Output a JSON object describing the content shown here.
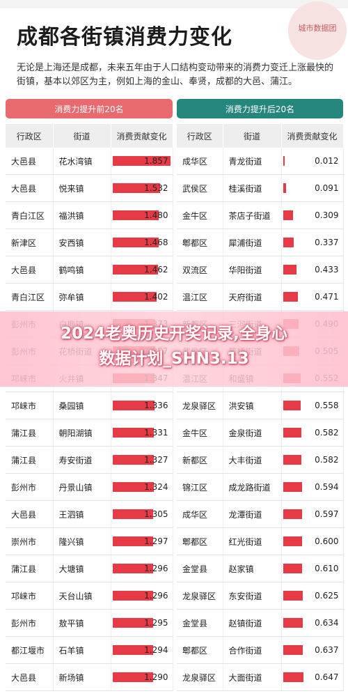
{
  "header": {
    "title": "成都各街镇消费力变化",
    "logo_text": "城市数据团",
    "intro": "无论是上海还是成都，未来五年由于人口结构变动带来的消费力变迁上涨最快的街镇，基本以郊区为主，例如上海的金山、奉贤，成都的大邑、蒲江。"
  },
  "banner": {
    "line1": "2024老奥历史开奖记录,全身心",
    "line2": "数据计划_SHN3.13"
  },
  "colors": {
    "left_header": "#e86a6f",
    "right_header": "#25867e",
    "bar": "#e63b46"
  },
  "chart_data": [
    {
      "type": "table",
      "title": "消费力提升前20名",
      "columns": [
        "行政区",
        "街道",
        "消费贡献变化"
      ],
      "rows": [
        {
          "district": "大邑县",
          "street": "花水湾镇",
          "value": 1.857
        },
        {
          "district": "大邑县",
          "street": "悦来镇",
          "value": 1.532
        },
        {
          "district": "青白江区",
          "street": "福洪镇",
          "value": 1.48
        },
        {
          "district": "新津区",
          "street": "安西镇",
          "value": 1.468
        },
        {
          "district": "大邑县",
          "street": "鹤鸣镇",
          "value": 1.462
        },
        {
          "district": "青白江区",
          "street": "弥牟镇",
          "value": 1.402
        },
        {
          "district": "彭州市",
          "street": "白鹿镇",
          "value": 1.373
        },
        {
          "district": "彭州市",
          "street": "花桥街道",
          "value": 1.357
        },
        {
          "district": "邛崃市",
          "street": "火井镇",
          "value": 1.347
        },
        {
          "district": "邛崃市",
          "street": "桑园镇",
          "value": 1.336
        },
        {
          "district": "蒲江县",
          "street": "朝阳湖镇",
          "value": 1.331
        },
        {
          "district": "蒲江县",
          "street": "寿安街道",
          "value": 1.327
        },
        {
          "district": "彭州市",
          "street": "丹景山镇",
          "value": 1.324
        },
        {
          "district": "大邑县",
          "street": "王泗镇",
          "value": 1.305
        },
        {
          "district": "崇州市",
          "street": "隆兴镇",
          "value": 1.297
        },
        {
          "district": "蒲江县",
          "street": "大塘镇",
          "value": 1.296
        },
        {
          "district": "邛崃市",
          "street": "天台山镇",
          "value": 1.296
        },
        {
          "district": "彭州市",
          "street": "敖平镇",
          "value": 1.295
        },
        {
          "district": "都江堰市",
          "street": "石羊镇",
          "value": 1.294
        },
        {
          "district": "大邑县",
          "street": "新场镇",
          "value": 1.29
        }
      ]
    },
    {
      "type": "table",
      "title": "消费力提升后20名",
      "columns": [
        "行政区",
        "街道",
        "消费贡献变化"
      ],
      "rows": [
        {
          "district": "成华区",
          "street": "青龙街道",
          "value": 0.012
        },
        {
          "district": "武侯区",
          "street": "桂溪街道",
          "value": 0.091
        },
        {
          "district": "金牛区",
          "street": "茶店子街道",
          "value": 0.309
        },
        {
          "district": "郫都区",
          "street": "犀浦街道",
          "value": 0.337
        },
        {
          "district": "双流区",
          "street": "华阳街道",
          "value": 0.433
        },
        {
          "district": "温江区",
          "street": "天府街道",
          "value": 0.471
        },
        {
          "district": "新都区",
          "street": "三河街道",
          "value": 0.49
        },
        {
          "district": "武侯区",
          "street": "簇桥街道",
          "value": 0.505
        },
        {
          "district": "温江区",
          "street": "和盛镇",
          "value": 0.552
        },
        {
          "district": "龙泉驿区",
          "street": "洪安镇",
          "value": 0.558
        },
        {
          "district": "金牛区",
          "street": "金泉街道",
          "value": 0.582
        },
        {
          "district": "新都区",
          "street": "大丰街道",
          "value": 0.582
        },
        {
          "district": "锦江区",
          "street": "成龙路街道",
          "value": 0.594
        },
        {
          "district": "成华区",
          "street": "龙潭街道",
          "value": 0.597
        },
        {
          "district": "郫都区",
          "street": "红光街道",
          "value": 0.6
        },
        {
          "district": "金堂县",
          "street": "赵家镇",
          "value": 0.61
        },
        {
          "district": "龙泉驿区",
          "street": "东安街道",
          "value": 0.625
        },
        {
          "district": "金堂县",
          "street": "赵镇街道",
          "value": 0.634
        },
        {
          "district": "郫都区",
          "street": "合作街道",
          "value": 0.637
        },
        {
          "district": "龙泉驿区",
          "street": "大面街道",
          "value": 0.647
        }
      ]
    }
  ]
}
